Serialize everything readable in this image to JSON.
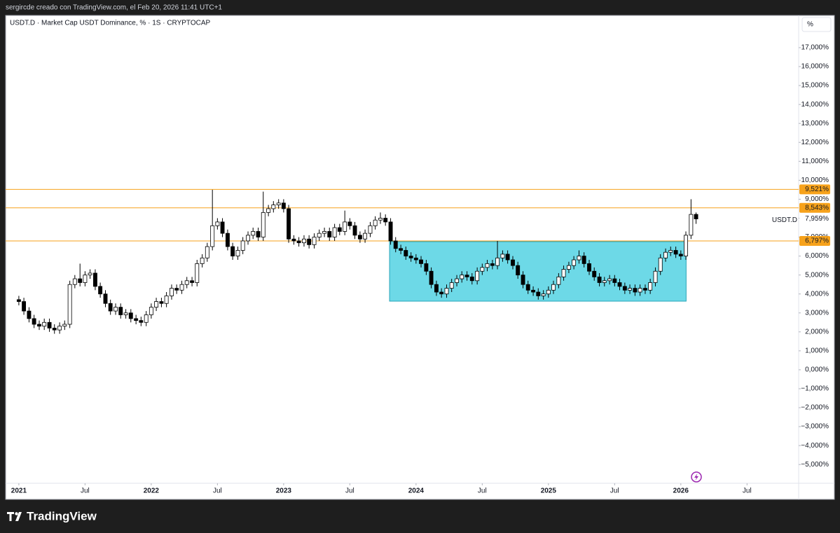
{
  "page_header": "sergircde creado con TradingView.com, el Feb 20, 2026 11:41 UTC+1",
  "brand": "TradingView",
  "chart_data": {
    "type": "candlestick",
    "title": "USDT.D · Market Cap USDT Dominance, % · 1S · CRYPTOCAP",
    "unit_button": "%",
    "x": [
      2021,
      2021.038,
      2021.077,
      2021.115,
      2021.154,
      2021.192,
      2021.231,
      2021.269,
      2021.308,
      2021.346,
      2021.385,
      2021.423,
      2021.462,
      2021.5,
      2021.538,
      2021.577,
      2021.615,
      2021.654,
      2021.692,
      2021.731,
      2021.769,
      2021.808,
      2021.846,
      2021.885,
      2021.923,
      2021.962,
      2022,
      2022.038,
      2022.077,
      2022.115,
      2022.154,
      2022.192,
      2022.231,
      2022.269,
      2022.308,
      2022.346,
      2022.385,
      2022.423,
      2022.462,
      2022.5,
      2022.538,
      2022.577,
      2022.615,
      2022.654,
      2022.692,
      2022.731,
      2022.769,
      2022.808,
      2022.846,
      2022.885,
      2022.923,
      2022.962,
      2023,
      2023.038,
      2023.077,
      2023.115,
      2023.154,
      2023.192,
      2023.231,
      2023.269,
      2023.308,
      2023.346,
      2023.385,
      2023.423,
      2023.462,
      2023.5,
      2023.538,
      2023.577,
      2023.615,
      2023.654,
      2023.692,
      2023.731,
      2023.769,
      2023.808,
      2023.846,
      2023.885,
      2023.923,
      2023.962,
      2024,
      2024.038,
      2024.077,
      2024.115,
      2024.154,
      2024.192,
      2024.231,
      2024.269,
      2024.308,
      2024.346,
      2024.385,
      2024.423,
      2024.462,
      2024.5,
      2024.538,
      2024.577,
      2024.615,
      2024.654,
      2024.692,
      2024.731,
      2024.769,
      2024.808,
      2024.846,
      2024.885,
      2024.923,
      2024.962,
      2025,
      2025.038,
      2025.077,
      2025.115,
      2025.154,
      2025.192,
      2025.231,
      2025.269,
      2025.308,
      2025.346,
      2025.385,
      2025.423,
      2025.462,
      2025.5,
      2025.538,
      2025.577,
      2025.615,
      2025.654,
      2025.692,
      2025.731,
      2025.769,
      2025.808,
      2025.846,
      2025.885,
      2025.923,
      2025.962,
      2026,
      2026.038,
      2026.077,
      2026.115
    ],
    "open": [
      3.7,
      3.6,
      3.1,
      2.7,
      2.4,
      2.3,
      2.5,
      2.2,
      2.1,
      2.3,
      2.4,
      4.5,
      4.8,
      4.6,
      5.0,
      5.1,
      4.4,
      4.0,
      3.5,
      3.1,
      3.3,
      2.9,
      3.0,
      2.7,
      2.6,
      2.5,
      2.9,
      3.3,
      3.6,
      3.5,
      3.9,
      4.3,
      4.2,
      4.5,
      4.7,
      4.6,
      5.6,
      5.9,
      6.5,
      7.6,
      7.8,
      7.2,
      6.5,
      6.0,
      6.3,
      6.8,
      7.1,
      7.3,
      7.0,
      8.3,
      8.5,
      8.7,
      8.8,
      8.5,
      6.9,
      6.8,
      6.7,
      6.9,
      6.6,
      7.0,
      7.2,
      7.3,
      7.0,
      7.5,
      7.3,
      7.8,
      7.6,
      7.1,
      6.9,
      7.2,
      7.6,
      7.9,
      8.0,
      7.8,
      6.8,
      6.4,
      6.3,
      6.0,
      5.9,
      5.8,
      5.6,
      5.2,
      4.5,
      4.1,
      4.0,
      4.3,
      4.6,
      4.8,
      5.0,
      4.9,
      4.7,
      5.2,
      5.4,
      5.6,
      5.5,
      5.9,
      6.1,
      5.8,
      5.5,
      5.0,
      4.5,
      4.2,
      4.1,
      3.9,
      4.0,
      4.2,
      4.5,
      4.9,
      5.3,
      5.5,
      5.8,
      6.0,
      5.6,
      5.2,
      4.9,
      4.6,
      4.7,
      4.8,
      4.6,
      4.4,
      4.2,
      4.3,
      4.1,
      4.3,
      4.2,
      4.6,
      5.2,
      5.9,
      6.2,
      6.3,
      6.1,
      6.0,
      7.1,
      8.2
    ],
    "high": [
      3.9,
      3.8,
      3.3,
      2.9,
      2.6,
      2.7,
      2.7,
      2.4,
      2.5,
      2.6,
      4.7,
      5.0,
      5.6,
      5.2,
      5.3,
      5.3,
      4.6,
      4.2,
      3.7,
      3.5,
      3.5,
      3.2,
      3.2,
      2.9,
      2.8,
      3.1,
      3.5,
      3.8,
      3.8,
      4.1,
      4.5,
      4.5,
      4.7,
      4.9,
      4.9,
      5.8,
      6.1,
      6.7,
      9.5,
      8.0,
      8.0,
      7.4,
      6.7,
      6.5,
      7.0,
      7.3,
      7.5,
      7.5,
      9.4,
      8.7,
      8.9,
      9.0,
      9.0,
      8.7,
      7.1,
      7.0,
      7.1,
      7.1,
      7.2,
      7.4,
      7.5,
      7.5,
      7.7,
      7.7,
      8.4,
      8.0,
      7.8,
      7.3,
      7.4,
      7.8,
      8.1,
      8.3,
      8.2,
      8.0,
      7.0,
      6.6,
      6.5,
      6.2,
      6.1,
      6.0,
      5.8,
      5.4,
      4.7,
      4.3,
      4.5,
      4.8,
      5.0,
      5.2,
      5.2,
      5.1,
      5.4,
      5.6,
      5.8,
      5.8,
      6.8,
      6.3,
      6.3,
      6.0,
      5.7,
      5.2,
      4.7,
      4.4,
      4.3,
      4.2,
      4.4,
      4.7,
      5.1,
      5.5,
      5.7,
      6.0,
      6.3,
      6.2,
      5.8,
      5.4,
      5.1,
      4.9,
      5.0,
      5.0,
      4.8,
      4.6,
      4.5,
      4.5,
      4.5,
      4.5,
      4.8,
      5.4,
      6.1,
      6.4,
      6.5,
      6.5,
      6.3,
      7.3,
      9.0,
      8.3
    ],
    "low": [
      3.4,
      2.9,
      2.5,
      2.2,
      2.1,
      2.1,
      2.0,
      1.9,
      1.9,
      2.1,
      2.2,
      4.3,
      4.4,
      4.4,
      4.8,
      4.2,
      3.8,
      3.3,
      2.9,
      2.9,
      2.7,
      2.7,
      2.5,
      2.4,
      2.3,
      2.3,
      2.7,
      3.1,
      3.3,
      3.3,
      3.7,
      4.0,
      4.0,
      4.3,
      4.4,
      4.4,
      5.4,
      5.7,
      6.3,
      7.4,
      7.0,
      6.3,
      5.8,
      5.8,
      6.1,
      6.6,
      6.9,
      6.8,
      6.8,
      8.1,
      8.3,
      8.5,
      8.3,
      6.7,
      6.6,
      6.5,
      6.5,
      6.4,
      6.4,
      6.8,
      7.0,
      6.8,
      6.8,
      7.1,
      7.1,
      7.4,
      6.9,
      6.7,
      6.7,
      7.0,
      7.4,
      7.7,
      7.6,
      6.6,
      6.2,
      6.1,
      5.8,
      5.7,
      5.6,
      5.4,
      5.0,
      4.3,
      3.9,
      3.8,
      3.8,
      4.1,
      4.4,
      4.6,
      4.7,
      4.5,
      4.5,
      5.0,
      5.2,
      5.3,
      5.3,
      5.7,
      5.6,
      5.3,
      4.8,
      4.3,
      4.0,
      3.9,
      3.7,
      3.7,
      3.8,
      4.0,
      4.3,
      4.7,
      5.1,
      5.3,
      5.6,
      5.4,
      5.0,
      4.7,
      4.4,
      4.4,
      4.5,
      4.4,
      4.2,
      4.0,
      4.0,
      3.9,
      3.9,
      4.0,
      4.0,
      4.4,
      5.0,
      5.7,
      6.0,
      5.9,
      5.8,
      5.8,
      6.9,
      7.7
    ],
    "close": [
      3.6,
      3.1,
      2.7,
      2.4,
      2.3,
      2.5,
      2.2,
      2.1,
      2.3,
      2.4,
      4.5,
      4.8,
      4.6,
      5.0,
      5.1,
      4.4,
      4.0,
      3.5,
      3.1,
      3.3,
      2.9,
      3.0,
      2.7,
      2.6,
      2.5,
      2.9,
      3.3,
      3.6,
      3.5,
      3.9,
      4.3,
      4.2,
      4.5,
      4.7,
      4.6,
      5.6,
      5.9,
      6.5,
      7.6,
      7.8,
      7.2,
      6.5,
      6.0,
      6.3,
      6.8,
      7.1,
      7.3,
      7.0,
      8.3,
      8.5,
      8.7,
      8.8,
      8.5,
      6.9,
      6.8,
      6.7,
      6.9,
      6.6,
      7.0,
      7.2,
      7.3,
      7.0,
      7.5,
      7.3,
      7.8,
      7.6,
      7.1,
      6.9,
      7.2,
      7.6,
      7.9,
      8.0,
      7.8,
      6.8,
      6.4,
      6.3,
      6.0,
      5.9,
      5.8,
      5.6,
      5.2,
      4.5,
      4.1,
      4.0,
      4.3,
      4.6,
      4.8,
      5.0,
      4.9,
      4.7,
      5.2,
      5.4,
      5.6,
      5.5,
      5.9,
      6.1,
      5.8,
      5.5,
      5.0,
      4.5,
      4.2,
      4.1,
      3.9,
      4.0,
      4.2,
      4.5,
      4.9,
      5.3,
      5.5,
      5.8,
      6.0,
      5.6,
      5.2,
      4.9,
      4.6,
      4.7,
      4.8,
      4.6,
      4.4,
      4.2,
      4.3,
      4.1,
      4.3,
      4.2,
      4.6,
      5.2,
      5.9,
      6.2,
      6.3,
      6.1,
      6.0,
      7.1,
      8.2,
      7.96
    ],
    "up_color": "#ffffff",
    "down_color": "#000000",
    "edge_color": "#000000",
    "xlim": [
      2020.9,
      2026.89
    ],
    "ylim": [
      -5.99,
      18.7
    ],
    "xticks": [
      2021,
      {
        "value": 2021.5,
        "label": "Jul"
      },
      2022,
      {
        "value": 2022.5,
        "label": "Jul"
      },
      2023,
      {
        "value": 2023.5,
        "label": "Jul"
      },
      2024,
      {
        "value": 2024.5,
        "label": "Jul"
      },
      2025,
      {
        "value": 2025.5,
        "label": "Jul"
      },
      2026,
      {
        "value": 2026.5,
        "label": "Jul"
      }
    ],
    "yticks": [
      {
        "value": 17,
        "label": "17,000%"
      },
      {
        "value": 16,
        "label": "16,000%"
      },
      {
        "value": 15,
        "label": "15,000%"
      },
      {
        "value": 14,
        "label": "14,000%"
      },
      {
        "value": 13,
        "label": "13,000%"
      },
      {
        "value": 12,
        "label": "12,000%"
      },
      {
        "value": 11,
        "label": "11,000%"
      },
      {
        "value": 10,
        "label": "10,000%"
      },
      {
        "value": 9,
        "label": "9,000%"
      },
      {
        "value": 8,
        "label": "8,000%"
      },
      {
        "value": 7,
        "label": "7,000%"
      },
      {
        "value": 6,
        "label": "6,000%"
      },
      {
        "value": 5,
        "label": "5,000%"
      },
      {
        "value": 4,
        "label": "4,000%"
      },
      {
        "value": 3,
        "label": "3,000%"
      },
      {
        "value": 2,
        "label": "2,000%"
      },
      {
        "value": 1,
        "label": "1,000%"
      },
      {
        "value": 0,
        "label": "0,000%"
      },
      {
        "value": -1,
        "label": "−1,000%"
      },
      {
        "value": -2,
        "label": "−2,000%"
      },
      {
        "value": -3,
        "label": "−3,000%"
      },
      {
        "value": -4,
        "label": "−4,000%"
      },
      {
        "value": -5,
        "label": "−5,000%"
      }
    ],
    "grid": false,
    "levels": [
      {
        "value": 9.521,
        "label": "9,521%"
      },
      {
        "value": 8.543,
        "label": "8,543%"
      },
      {
        "value": 6.797,
        "label": "6,797%"
      }
    ],
    "level_color": "#f7a21b",
    "zone": {
      "x": [
        2023.8,
        2026.04
      ],
      "y": [
        3.62,
        6.76
      ],
      "color": "#6dd9e7",
      "edge_color": "#2aa5b8"
    },
    "last": {
      "name": "USDT.D",
      "value": 7.959,
      "label": "7,959%"
    }
  }
}
